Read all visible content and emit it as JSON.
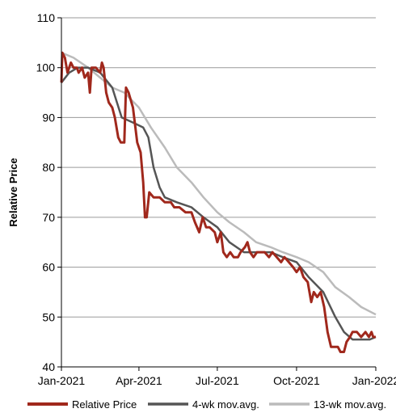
{
  "chart_data": {
    "type": "line",
    "xlabel": "",
    "ylabel": "Relative Price",
    "ylim": [
      40,
      110
    ],
    "yticks": [
      "40",
      "50",
      "60",
      "70",
      "80",
      "90",
      "100",
      "110"
    ],
    "xticks": [
      {
        "label": "Jan-2021",
        "date": "2021-01-01"
      },
      {
        "label": "Apr-2021",
        "date": "2021-04-01"
      },
      {
        "label": "Jul-2021",
        "date": "2021-07-01"
      },
      {
        "label": "Oct-2021",
        "date": "2021-10-01"
      },
      {
        "label": "Jan-2022",
        "date": "2022-01-01"
      }
    ],
    "xlim": [
      "2021-01-01",
      "2022-01-01"
    ],
    "grid": true,
    "legend_position": "bottom",
    "series": [
      {
        "name": "Relative Price",
        "color": "#a0281c",
        "points": [
          [
            "2021-01-01",
            97
          ],
          [
            "2021-01-02",
            103
          ],
          [
            "2021-01-05",
            102
          ],
          [
            "2021-01-08",
            99
          ],
          [
            "2021-01-12",
            101
          ],
          [
            "2021-01-15",
            100
          ],
          [
            "2021-01-19",
            100
          ],
          [
            "2021-01-21",
            99
          ],
          [
            "2021-01-25",
            100
          ],
          [
            "2021-01-28",
            98
          ],
          [
            "2021-02-01",
            99
          ],
          [
            "2021-02-03",
            95
          ],
          [
            "2021-02-05",
            100
          ],
          [
            "2021-02-10",
            100
          ],
          [
            "2021-02-15",
            99
          ],
          [
            "2021-02-17",
            101
          ],
          [
            "2021-02-19",
            100
          ],
          [
            "2021-02-22",
            95
          ],
          [
            "2021-02-25",
            93
          ],
          [
            "2021-03-01",
            92
          ],
          [
            "2021-03-04",
            90
          ],
          [
            "2021-03-08",
            86
          ],
          [
            "2021-03-11",
            85
          ],
          [
            "2021-03-15",
            85
          ],
          [
            "2021-03-17",
            96
          ],
          [
            "2021-03-20",
            95
          ],
          [
            "2021-03-25",
            92
          ],
          [
            "2021-03-30",
            85
          ],
          [
            "2021-04-03",
            83
          ],
          [
            "2021-04-06",
            77
          ],
          [
            "2021-04-08",
            70
          ],
          [
            "2021-04-10",
            70
          ],
          [
            "2021-04-13",
            75
          ],
          [
            "2021-04-18",
            74
          ],
          [
            "2021-04-25",
            74
          ],
          [
            "2021-05-01",
            73
          ],
          [
            "2021-05-08",
            73
          ],
          [
            "2021-05-12",
            72
          ],
          [
            "2021-05-18",
            72
          ],
          [
            "2021-05-25",
            71
          ],
          [
            "2021-06-01",
            71
          ],
          [
            "2021-06-05",
            69
          ],
          [
            "2021-06-10",
            67
          ],
          [
            "2021-06-14",
            70
          ],
          [
            "2021-06-18",
            68
          ],
          [
            "2021-06-22",
            68
          ],
          [
            "2021-06-28",
            67
          ],
          [
            "2021-07-01",
            65
          ],
          [
            "2021-07-05",
            67
          ],
          [
            "2021-07-08",
            63
          ],
          [
            "2021-07-12",
            62
          ],
          [
            "2021-07-16",
            63
          ],
          [
            "2021-07-20",
            62
          ],
          [
            "2021-07-25",
            62
          ],
          [
            "2021-07-28",
            63
          ],
          [
            "2021-08-02",
            64
          ],
          [
            "2021-08-05",
            65
          ],
          [
            "2021-08-08",
            63
          ],
          [
            "2021-08-12",
            62
          ],
          [
            "2021-08-16",
            63
          ],
          [
            "2021-08-20",
            63
          ],
          [
            "2021-08-25",
            63
          ],
          [
            "2021-08-30",
            62
          ],
          [
            "2021-09-03",
            63
          ],
          [
            "2021-09-08",
            62
          ],
          [
            "2021-09-13",
            61
          ],
          [
            "2021-09-17",
            62
          ],
          [
            "2021-09-22",
            61
          ],
          [
            "2021-09-27",
            60
          ],
          [
            "2021-10-01",
            59
          ],
          [
            "2021-10-05",
            60
          ],
          [
            "2021-10-09",
            58
          ],
          [
            "2021-10-14",
            57
          ],
          [
            "2021-10-18",
            53
          ],
          [
            "2021-10-21",
            55
          ],
          [
            "2021-10-25",
            54
          ],
          [
            "2021-10-29",
            55
          ],
          [
            "2021-11-02",
            52
          ],
          [
            "2021-11-06",
            47
          ],
          [
            "2021-11-10",
            44
          ],
          [
            "2021-11-14",
            44
          ],
          [
            "2021-11-18",
            44
          ],
          [
            "2021-11-21",
            43
          ],
          [
            "2021-11-25",
            43
          ],
          [
            "2021-11-28",
            45
          ],
          [
            "2021-12-02",
            46
          ],
          [
            "2021-12-05",
            47
          ],
          [
            "2021-12-10",
            47
          ],
          [
            "2021-12-15",
            46
          ],
          [
            "2021-12-20",
            47
          ],
          [
            "2021-12-24",
            46
          ],
          [
            "2021-12-27",
            47
          ],
          [
            "2021-12-29",
            46
          ],
          [
            "2022-01-01",
            46
          ]
        ]
      },
      {
        "name": "4-wk mov.avg.",
        "color": "#555555",
        "points": [
          [
            "2021-01-01",
            97
          ],
          [
            "2021-01-10",
            99
          ],
          [
            "2021-01-20",
            100
          ],
          [
            "2021-02-01",
            100
          ],
          [
            "2021-02-15",
            99
          ],
          [
            "2021-03-01",
            96
          ],
          [
            "2021-03-12",
            90
          ],
          [
            "2021-03-25",
            89
          ],
          [
            "2021-04-06",
            88
          ],
          [
            "2021-04-12",
            86
          ],
          [
            "2021-04-18",
            80
          ],
          [
            "2021-04-25",
            76
          ],
          [
            "2021-05-01",
            74
          ],
          [
            "2021-05-15",
            73
          ],
          [
            "2021-06-01",
            72
          ],
          [
            "2021-06-15",
            70
          ],
          [
            "2021-07-01",
            68
          ],
          [
            "2021-07-15",
            65
          ],
          [
            "2021-08-01",
            63
          ],
          [
            "2021-08-15",
            63
          ],
          [
            "2021-09-01",
            63
          ],
          [
            "2021-09-15",
            62
          ],
          [
            "2021-10-01",
            61
          ],
          [
            "2021-10-15",
            58
          ],
          [
            "2021-11-01",
            55
          ],
          [
            "2021-11-15",
            50
          ],
          [
            "2021-11-25",
            47
          ],
          [
            "2021-12-05",
            45.5
          ],
          [
            "2021-12-15",
            45.5
          ],
          [
            "2021-12-25",
            45.5
          ],
          [
            "2022-01-01",
            46
          ]
        ]
      },
      {
        "name": "13-wk mov.avg.",
        "color": "#bbbbbb",
        "points": [
          [
            "2021-01-01",
            103
          ],
          [
            "2021-01-15",
            102
          ],
          [
            "2021-02-01",
            100
          ],
          [
            "2021-02-15",
            98
          ],
          [
            "2021-03-01",
            96
          ],
          [
            "2021-03-15",
            95
          ],
          [
            "2021-04-01",
            92
          ],
          [
            "2021-04-15",
            88
          ],
          [
            "2021-05-01",
            84
          ],
          [
            "2021-05-15",
            80
          ],
          [
            "2021-06-01",
            77
          ],
          [
            "2021-06-15",
            74
          ],
          [
            "2021-07-01",
            71
          ],
          [
            "2021-07-15",
            69
          ],
          [
            "2021-08-01",
            67
          ],
          [
            "2021-08-15",
            65
          ],
          [
            "2021-09-01",
            64
          ],
          [
            "2021-09-15",
            63
          ],
          [
            "2021-10-01",
            62
          ],
          [
            "2021-10-15",
            61
          ],
          [
            "2021-11-01",
            59
          ],
          [
            "2021-11-15",
            56
          ],
          [
            "2021-12-01",
            54
          ],
          [
            "2021-12-15",
            52
          ],
          [
            "2022-01-01",
            50.5
          ]
        ]
      }
    ]
  }
}
